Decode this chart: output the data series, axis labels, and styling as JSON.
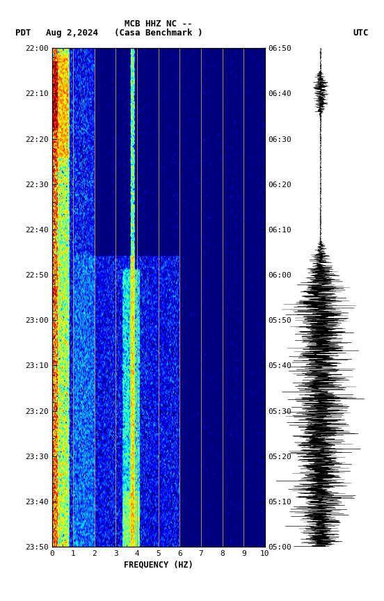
{
  "title_line1": "MCB HHZ NC --",
  "title_line2": "(Casa Benchmark )",
  "label_left": "PDT",
  "label_date": "Aug 2,2024",
  "label_right": "UTC",
  "xlabel": "FREQUENCY (HZ)",
  "freq_min": 0,
  "freq_max": 10,
  "freq_ticks": [
    0,
    1,
    2,
    3,
    4,
    5,
    6,
    7,
    8,
    9,
    10
  ],
  "ytick_labels_left": [
    "22:00",
    "22:10",
    "22:20",
    "22:30",
    "22:40",
    "22:50",
    "23:00",
    "23:10",
    "23:20",
    "23:30",
    "23:40",
    "23:50"
  ],
  "ytick_labels_right": [
    "05:00",
    "05:10",
    "05:20",
    "05:30",
    "05:40",
    "05:50",
    "06:00",
    "06:10",
    "06:20",
    "06:30",
    "06:40",
    "06:50"
  ],
  "vertical_lines": [
    1.0,
    2.0,
    3.0,
    4.0,
    5.0,
    6.0,
    7.0,
    8.0,
    9.0
  ],
  "fig_width": 5.52,
  "fig_height": 8.64,
  "dpi": 100,
  "vline_color": "#C8A040",
  "bg_color": "white"
}
